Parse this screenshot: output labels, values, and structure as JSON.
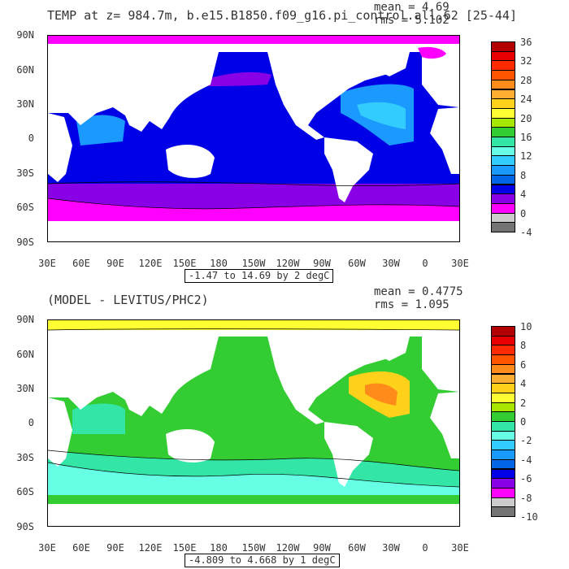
{
  "panels": [
    {
      "id": "top",
      "title": "TEMP at z= 984.7m, b.e15.B1850.f09_g16.pi_control.all.62 [25-44]",
      "mean": "mean = 4.69",
      "rms": "rms = 5.102",
      "range_label": "-1.47 to 14.69 by 2 degC",
      "y_labels": [
        "90N",
        "60N",
        "30N",
        "0",
        "30S",
        "60S",
        "90S"
      ],
      "x_labels": [
        "30E",
        "60E",
        "90E",
        "120E",
        "150E",
        "180",
        "150W",
        "120W",
        "90W",
        "60W",
        "30W",
        "0",
        "30E"
      ],
      "colorbar": {
        "labels": [
          "36",
          "32",
          "28",
          "24",
          "20",
          "16",
          "12",
          "8",
          "4",
          "0",
          "-4"
        ],
        "colors": [
          "#b30000",
          "#e60000",
          "#ff2a00",
          "#ff5500",
          "#ff8c1a",
          "#ffad33",
          "#ffd11a",
          "#ffff33",
          "#a6e600",
          "#33cc33",
          "#33e6a6",
          "#66ffe6",
          "#33ccff",
          "#1a99ff",
          "#0066e6",
          "#0000e6",
          "#8a00e6",
          "#ff00ff",
          "#cccccc",
          "#737373"
        ]
      }
    },
    {
      "id": "bottom",
      "title": "(MODEL - LEVITUS/PHC2)",
      "mean": "mean = 0.4775",
      "rms": "rms = 1.095",
      "range_label": "-4.809 to 4.668 by 1 degC",
      "y_labels": [
        "90N",
        "60N",
        "30N",
        "0",
        "30S",
        "60S",
        "90S"
      ],
      "x_labels": [
        "30E",
        "60E",
        "90E",
        "120E",
        "150E",
        "180",
        "150W",
        "120W",
        "90W",
        "60W",
        "30W",
        "0",
        "30E"
      ],
      "colorbar": {
        "labels": [
          "10",
          "8",
          "6",
          "4",
          "2",
          "0",
          "-2",
          "-4",
          "-6",
          "-8",
          "-10"
        ],
        "colors": [
          "#b30000",
          "#e60000",
          "#ff2a00",
          "#ff5500",
          "#ff8c1a",
          "#ffad33",
          "#ffd11a",
          "#ffff33",
          "#a6e600",
          "#33cc33",
          "#33e6a6",
          "#66ffe6",
          "#33ccff",
          "#1a99ff",
          "#0066e6",
          "#0000e6",
          "#8a00e6",
          "#ff00ff",
          "#cccccc",
          "#737373"
        ]
      }
    }
  ]
}
